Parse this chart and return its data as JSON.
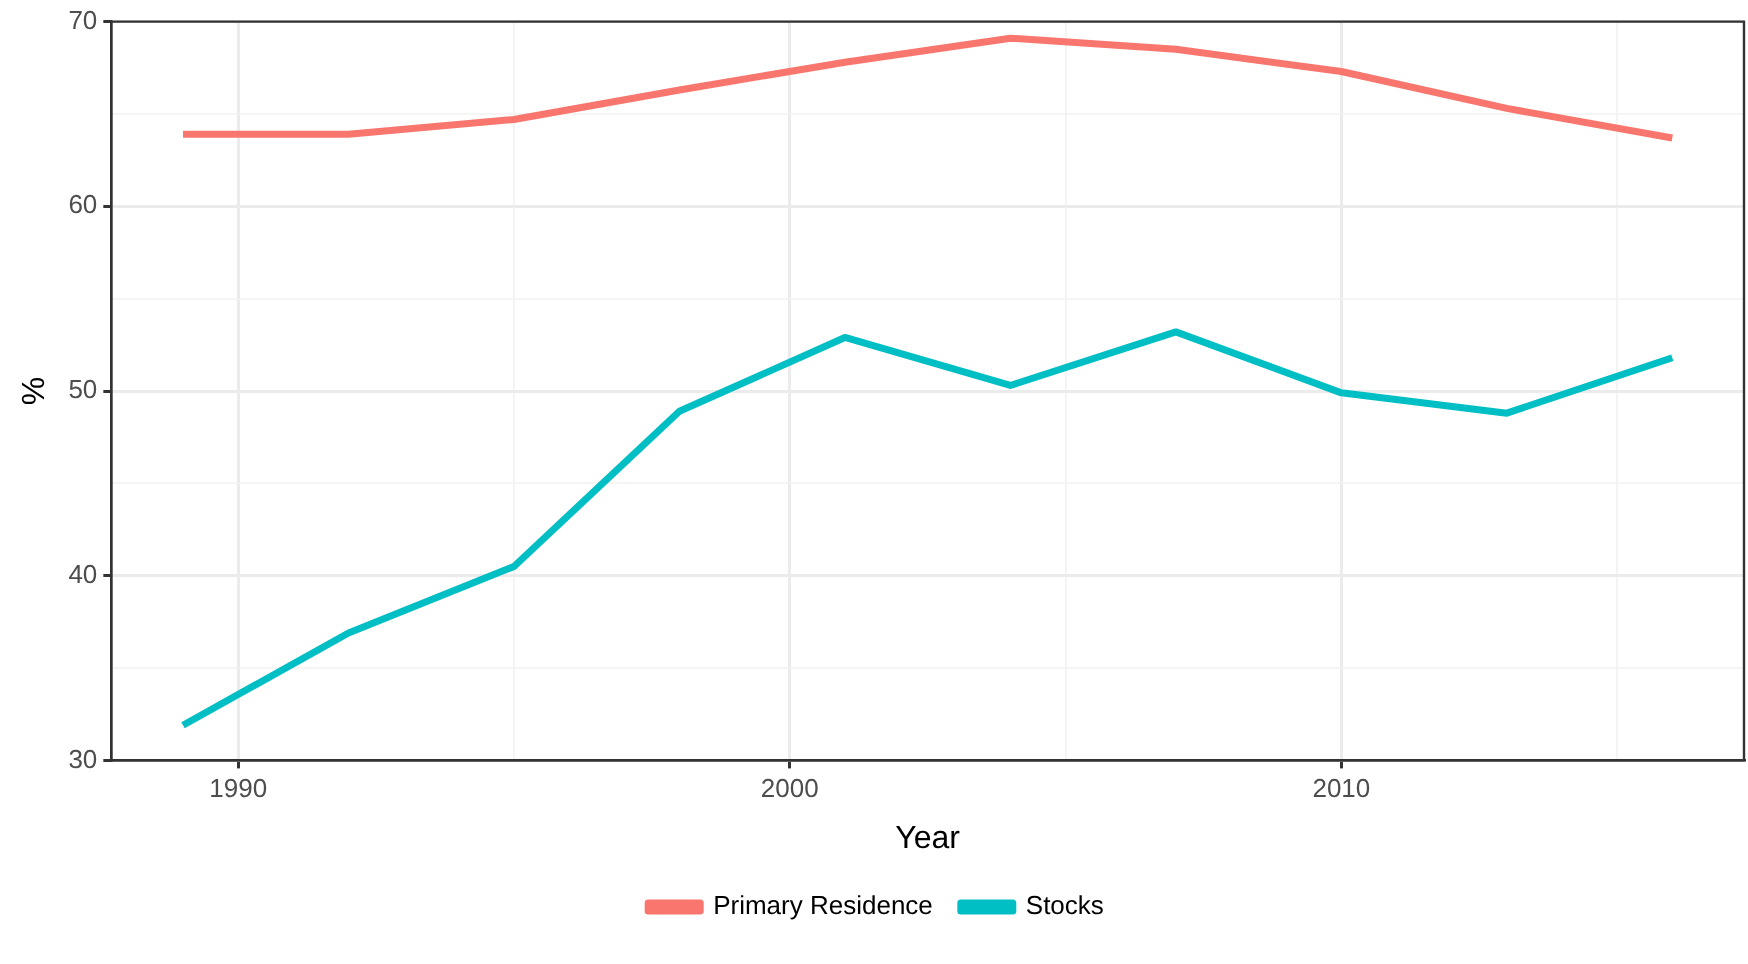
{
  "chart_data": {
    "type": "line",
    "xlabel": "Year",
    "ylabel": "%",
    "x": [
      1989,
      1992,
      1995,
      1998,
      2001,
      2004,
      2007,
      2010,
      2013,
      2016
    ],
    "series": [
      {
        "name": "Primary Residence",
        "color": "#f8766d",
        "values": [
          63.9,
          63.9,
          64.7,
          66.3,
          67.8,
          69.1,
          68.5,
          67.3,
          65.3,
          63.7
        ]
      },
      {
        "name": "Stocks",
        "color": "#00bfc4",
        "values": [
          31.9,
          36.9,
          40.5,
          48.9,
          52.9,
          50.3,
          53.2,
          49.9,
          48.8,
          51.8
        ]
      }
    ],
    "xlim": [
      1987.7,
      2017.3
    ],
    "xticks": [
      {
        "value": 1990,
        "label": "1990"
      },
      {
        "value": 1995,
        "label": null
      },
      {
        "value": 2000,
        "label": "2000"
      },
      {
        "value": 2005,
        "label": null
      },
      {
        "value": 2010,
        "label": "2010"
      },
      {
        "value": 2015,
        "label": null
      }
    ],
    "ylim": [
      30,
      70
    ],
    "yticks": [
      30,
      {
        "value": 35,
        "label": null
      },
      40,
      {
        "value": 45,
        "label": null
      },
      50,
      {
        "value": 55,
        "label": null
      },
      60,
      {
        "value": 65,
        "label": null
      },
      70
    ],
    "grid": true,
    "legend": "bottom",
    "marker": "none",
    "line_style": "solid"
  }
}
